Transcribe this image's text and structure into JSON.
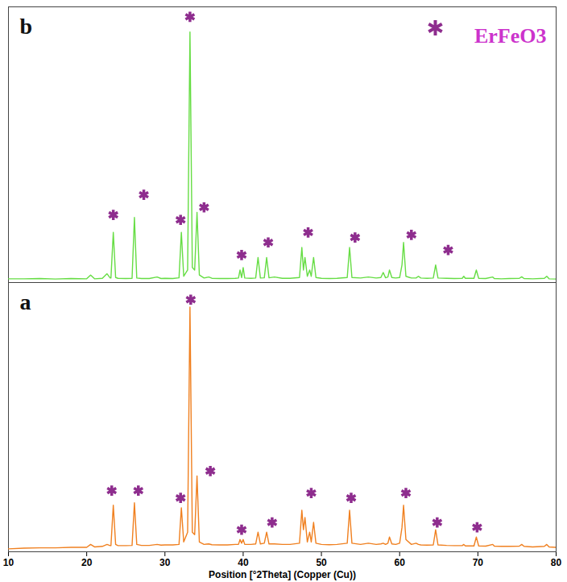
{
  "chart_data": [
    {
      "type": "line",
      "title": "b",
      "x": [
        10,
        12,
        14,
        16,
        18,
        20,
        20.5,
        21,
        22,
        22.6,
        23,
        23.1,
        23.4,
        23.7,
        24,
        25,
        25.8,
        26.1,
        26.4,
        27,
        28,
        29,
        29.5,
        30,
        31,
        31.8,
        32.1,
        32.4,
        32.9,
        33.2,
        33.5,
        33.8,
        34.1,
        34.4,
        35,
        35.6,
        36,
        37,
        38,
        39,
        39.4,
        39.6,
        39.8,
        40,
        40.2,
        41,
        41.6,
        41.9,
        42.2,
        42.7,
        43,
        43.3,
        44,
        45,
        46,
        47.2,
        47.5,
        47.7,
        47.9,
        48.2,
        48.5,
        48.7,
        49,
        49.3,
        50,
        51,
        52,
        53.3,
        53.6,
        53.9,
        55,
        56,
        57,
        57.6,
        57.9,
        58.2,
        58.5,
        58.7,
        59,
        59.5,
        60,
        60.3,
        60.5,
        60.8,
        61.5,
        62.1,
        62.4,
        62.7,
        63.5,
        64.3,
        64.6,
        64.9,
        66,
        67,
        68,
        68.2,
        68.4,
        69.5,
        69.8,
        70.1,
        71,
        71.9,
        72.1,
        73,
        74,
        75.3,
        75.6,
        75.9,
        77,
        78.5,
        78.8,
        79.1,
        80
      ],
      "values": [
        1.5,
        1.5,
        1.6,
        1.4,
        1.6,
        1.5,
        3,
        1.5,
        1.7,
        3.5,
        1.8,
        1.8,
        20,
        2,
        1.7,
        1.6,
        1.7,
        26,
        1.8,
        1.6,
        1.6,
        2.2,
        1.6,
        1.7,
        1.6,
        1.9,
        20,
        2.5,
        5,
        100,
        6,
        5,
        28,
        3,
        1.8,
        2.2,
        1.7,
        1.6,
        1.6,
        1.7,
        1.8,
        5,
        2,
        6,
        1.8,
        1.7,
        1.8,
        10,
        1.8,
        1.9,
        10,
        1.9,
        2.2,
        1.7,
        1.7,
        2,
        14,
        5,
        10,
        2.5,
        5,
        2.5,
        10,
        2,
        1.7,
        1.6,
        1.7,
        2,
        14,
        2,
        1.8,
        2.2,
        1.8,
        2,
        4,
        1.9,
        2.2,
        5,
        2,
        1.8,
        2,
        7,
        16,
        2.5,
        1.8,
        1.8,
        2.5,
        1.8,
        1.7,
        1.8,
        7,
        1.8,
        1.7,
        1.6,
        1.7,
        2.5,
        1.7,
        1.7,
        5,
        1.7,
        1.6,
        2.2,
        1.6,
        1.5,
        1.6,
        1.7,
        2.3,
        1.6,
        1.5,
        1.7,
        2.5,
        1.5,
        1.4
      ],
      "color": "#66dd44",
      "xlim": [
        10,
        80
      ],
      "xticks": [
        10,
        20,
        30,
        40,
        50,
        60,
        70,
        80
      ],
      "ylim": [
        0,
        110
      ],
      "yticks": [],
      "tick_labels": false,
      "legend": "top-right",
      "markers": {
        "name": "ErFeO3",
        "color": "#8e2d8e",
        "marker": "asterisk",
        "x": [
          23.4,
          27.3,
          32.0,
          33.2,
          35.0,
          39.8,
          43.2,
          48.3,
          54.3,
          61.5,
          66.2
        ],
        "y": [
          27,
          35,
          25,
          106,
          30,
          11,
          16,
          20,
          18,
          19,
          13
        ]
      }
    },
    {
      "type": "line",
      "title": "a",
      "xlabel": "Position [°2Theta] (Copper (Cu))",
      "x": [
        10,
        12,
        14,
        16,
        18,
        20,
        20.5,
        21,
        22,
        22.6,
        23,
        23.1,
        23.4,
        23.7,
        24,
        25,
        25.8,
        26.1,
        26.4,
        27,
        28,
        29,
        29.5,
        30,
        31,
        31.8,
        32.1,
        32.4,
        32.9,
        33.2,
        33.5,
        33.8,
        34.1,
        34.4,
        35,
        35.6,
        36,
        37,
        38,
        39,
        39.4,
        39.6,
        39.8,
        40,
        40.2,
        41,
        41.6,
        41.9,
        42.2,
        42.7,
        43,
        43.3,
        44,
        45,
        46,
        47.2,
        47.5,
        47.7,
        47.9,
        48.2,
        48.5,
        48.7,
        49,
        49.3,
        50,
        51,
        52,
        53.3,
        53.6,
        53.9,
        55,
        56,
        57,
        57.6,
        57.9,
        58.2,
        58.5,
        58.7,
        59,
        59.5,
        60,
        60.3,
        60.5,
        60.8,
        61.5,
        62.1,
        62.4,
        62.7,
        63.5,
        64.3,
        64.6,
        64.9,
        66,
        67,
        68,
        68.2,
        68.4,
        69.5,
        69.8,
        70.1,
        71,
        71.9,
        72.1,
        73,
        74,
        75.3,
        75.6,
        75.9,
        77,
        78.5,
        78.8,
        79.1,
        80
      ],
      "values": [
        1.2,
        1.5,
        1.6,
        1.6,
        1.8,
        1.8,
        3,
        2,
        2.2,
        3,
        2.5,
        2.5,
        19,
        3,
        2.5,
        2.5,
        2.6,
        20,
        3,
        2.6,
        2.6,
        3,
        2.7,
        2.8,
        2.8,
        3,
        18,
        4,
        8,
        100,
        8,
        7,
        31,
        4,
        3,
        3.2,
        2.9,
        2.8,
        2.8,
        3,
        3,
        5,
        3.5,
        5,
        3,
        3,
        3.2,
        8,
        3.2,
        3.5,
        8,
        3.2,
        3.2,
        3,
        3,
        3.5,
        17,
        9,
        14,
        4,
        8,
        4,
        12,
        3.5,
        3,
        2.9,
        3,
        3.5,
        17,
        3.5,
        3,
        3.5,
        3,
        3.2,
        3.5,
        3,
        3.5,
        6,
        3.2,
        3,
        3.5,
        10,
        19,
        5,
        3,
        3.5,
        3,
        2.8,
        2.7,
        2.8,
        9,
        2.8,
        2.6,
        2.5,
        2.5,
        3,
        2.4,
        2.4,
        6,
        2.4,
        2.3,
        3,
        2.3,
        2.2,
        2.2,
        2.3,
        3,
        2.2,
        2,
        2.2,
        3,
        2,
        1.8
      ],
      "color": "#f08020",
      "xlim": [
        10,
        80
      ],
      "xticks": [
        10,
        20,
        30,
        40,
        50,
        60,
        70,
        80
      ],
      "ylim": [
        0,
        110
      ],
      "yticks": [],
      "tick_labels": "x",
      "markers": {
        "name": "ErFeO3",
        "color": "#8e2d8e",
        "marker": "asterisk",
        "x": [
          23.2,
          26.6,
          32.0,
          33.3,
          35.8,
          39.8,
          43.7,
          48.7,
          53.8,
          60.8,
          64.8,
          69.9
        ],
        "y": [
          25,
          25,
          22,
          103,
          33,
          9,
          12,
          24,
          22,
          24,
          12,
          10
        ]
      }
    }
  ]
}
